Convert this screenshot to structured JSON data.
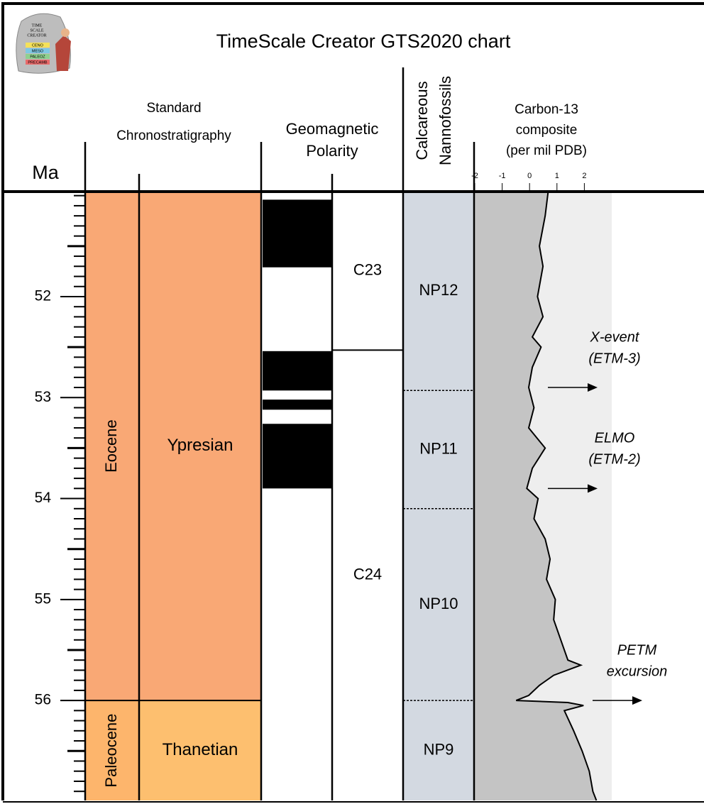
{
  "chart_data": {
    "type": "timescale",
    "title": "TimeScale Creator GTS2020 chart",
    "logo": {
      "text": [
        "TIME",
        "SCALE",
        "CREATOR"
      ],
      "bands": [
        "CENO",
        "MESO",
        "PALEOZ",
        "PRECAMB"
      ]
    },
    "axis_label": "Ma",
    "ylim": [
      50.96,
      56.99
    ],
    "yticks": [
      52,
      53,
      54,
      55,
      56
    ],
    "minor_yticks": [
      51.0,
      51.1,
      51.2,
      51.3,
      51.4,
      51.5,
      51.6,
      51.7,
      51.8,
      51.9,
      52.1,
      52.2,
      52.3,
      52.4,
      52.5,
      52.6,
      52.7,
      52.8,
      52.9,
      53.1,
      53.2,
      53.3,
      53.4,
      53.5,
      53.6,
      53.7,
      53.8,
      53.9,
      54.1,
      54.2,
      54.3,
      54.4,
      54.5,
      54.6,
      54.7,
      54.8,
      54.9,
      55.1,
      55.2,
      55.3,
      55.4,
      55.5,
      55.6,
      55.7,
      55.8,
      55.9,
      56.1,
      56.2,
      56.3,
      56.4,
      56.5,
      56.6,
      56.7,
      56.8,
      56.9
    ],
    "chronostratigraphy": {
      "header": [
        "Standard",
        "Chronostratigraphy"
      ],
      "epochs": [
        {
          "name": "Eocene",
          "base": 56,
          "color": "#f9a875"
        },
        {
          "name": "Paleocene",
          "color": "#fdb56c"
        }
      ],
      "stages": [
        {
          "name": "Ypresian",
          "base": 56,
          "color": "#f9a875"
        },
        {
          "name": "Thanetian",
          "color": "#fdbf6f"
        }
      ]
    },
    "polarity": {
      "header": [
        "Geomagnetic",
        "Polarity"
      ],
      "normal": [
        [
          51.04,
          51.71
        ],
        [
          52.54,
          52.93
        ],
        [
          53.02,
          53.12
        ],
        [
          53.26,
          53.9
        ]
      ],
      "chrons": [
        {
          "name": "C23",
          "base": 52.53
        },
        {
          "name": "C24"
        }
      ]
    },
    "nannofossils": {
      "header": [
        "Calcareous",
        "Nannofossils"
      ],
      "color": "#d3d9e1",
      "zones": [
        {
          "name": "NP12",
          "base": 52.93
        },
        {
          "name": "NP11",
          "base": 54.1
        },
        {
          "name": "NP10",
          "base": 56
        },
        {
          "name": "NP9"
        }
      ]
    },
    "carbon": {
      "header": [
        "Carbon-13",
        "composite",
        "(per mil PDB)"
      ],
      "xlim": [
        -2,
        3
      ],
      "xticks": [
        -2,
        -1,
        0,
        1,
        2
      ],
      "color": "#000000",
      "age": [
        50.96,
        51.2,
        51.5,
        51.7,
        52.0,
        52.2,
        52.4,
        52.5,
        52.7,
        52.9,
        53.1,
        53.3,
        53.5,
        53.7,
        53.9,
        54.0,
        54.2,
        54.4,
        54.6,
        54.8,
        55.0,
        55.2,
        55.4,
        55.6,
        55.65,
        55.75,
        55.85,
        55.95,
        56.0,
        56.02,
        56.05,
        56.1,
        56.3,
        56.5,
        56.7,
        56.9,
        56.99
      ],
      "values": [
        0.68,
        0.57,
        0.36,
        0.49,
        0.29,
        0.49,
        0.1,
        0.42,
        0.1,
        -0.03,
        0.16,
        -0.03,
        0.57,
        0.1,
        -0.1,
        0.31,
        0.16,
        0.57,
        0.75,
        0.62,
        0.94,
        0.88,
        1.14,
        1.4,
        1.87,
        0.88,
        0.36,
        -0.03,
        -0.49,
        1.4,
        1.97,
        1.27,
        1.61,
        1.92,
        2.18,
        2.31,
        2.44
      ],
      "events": [
        {
          "label": [
            "X-event",
            "(ETM-3)"
          ],
          "age": 52.9
        },
        {
          "label": [
            "ELMO",
            "(ETM-2)"
          ],
          "age": 53.9
        },
        {
          "label": [
            "PETM",
            "excursion"
          ],
          "age": 56
        }
      ]
    }
  }
}
